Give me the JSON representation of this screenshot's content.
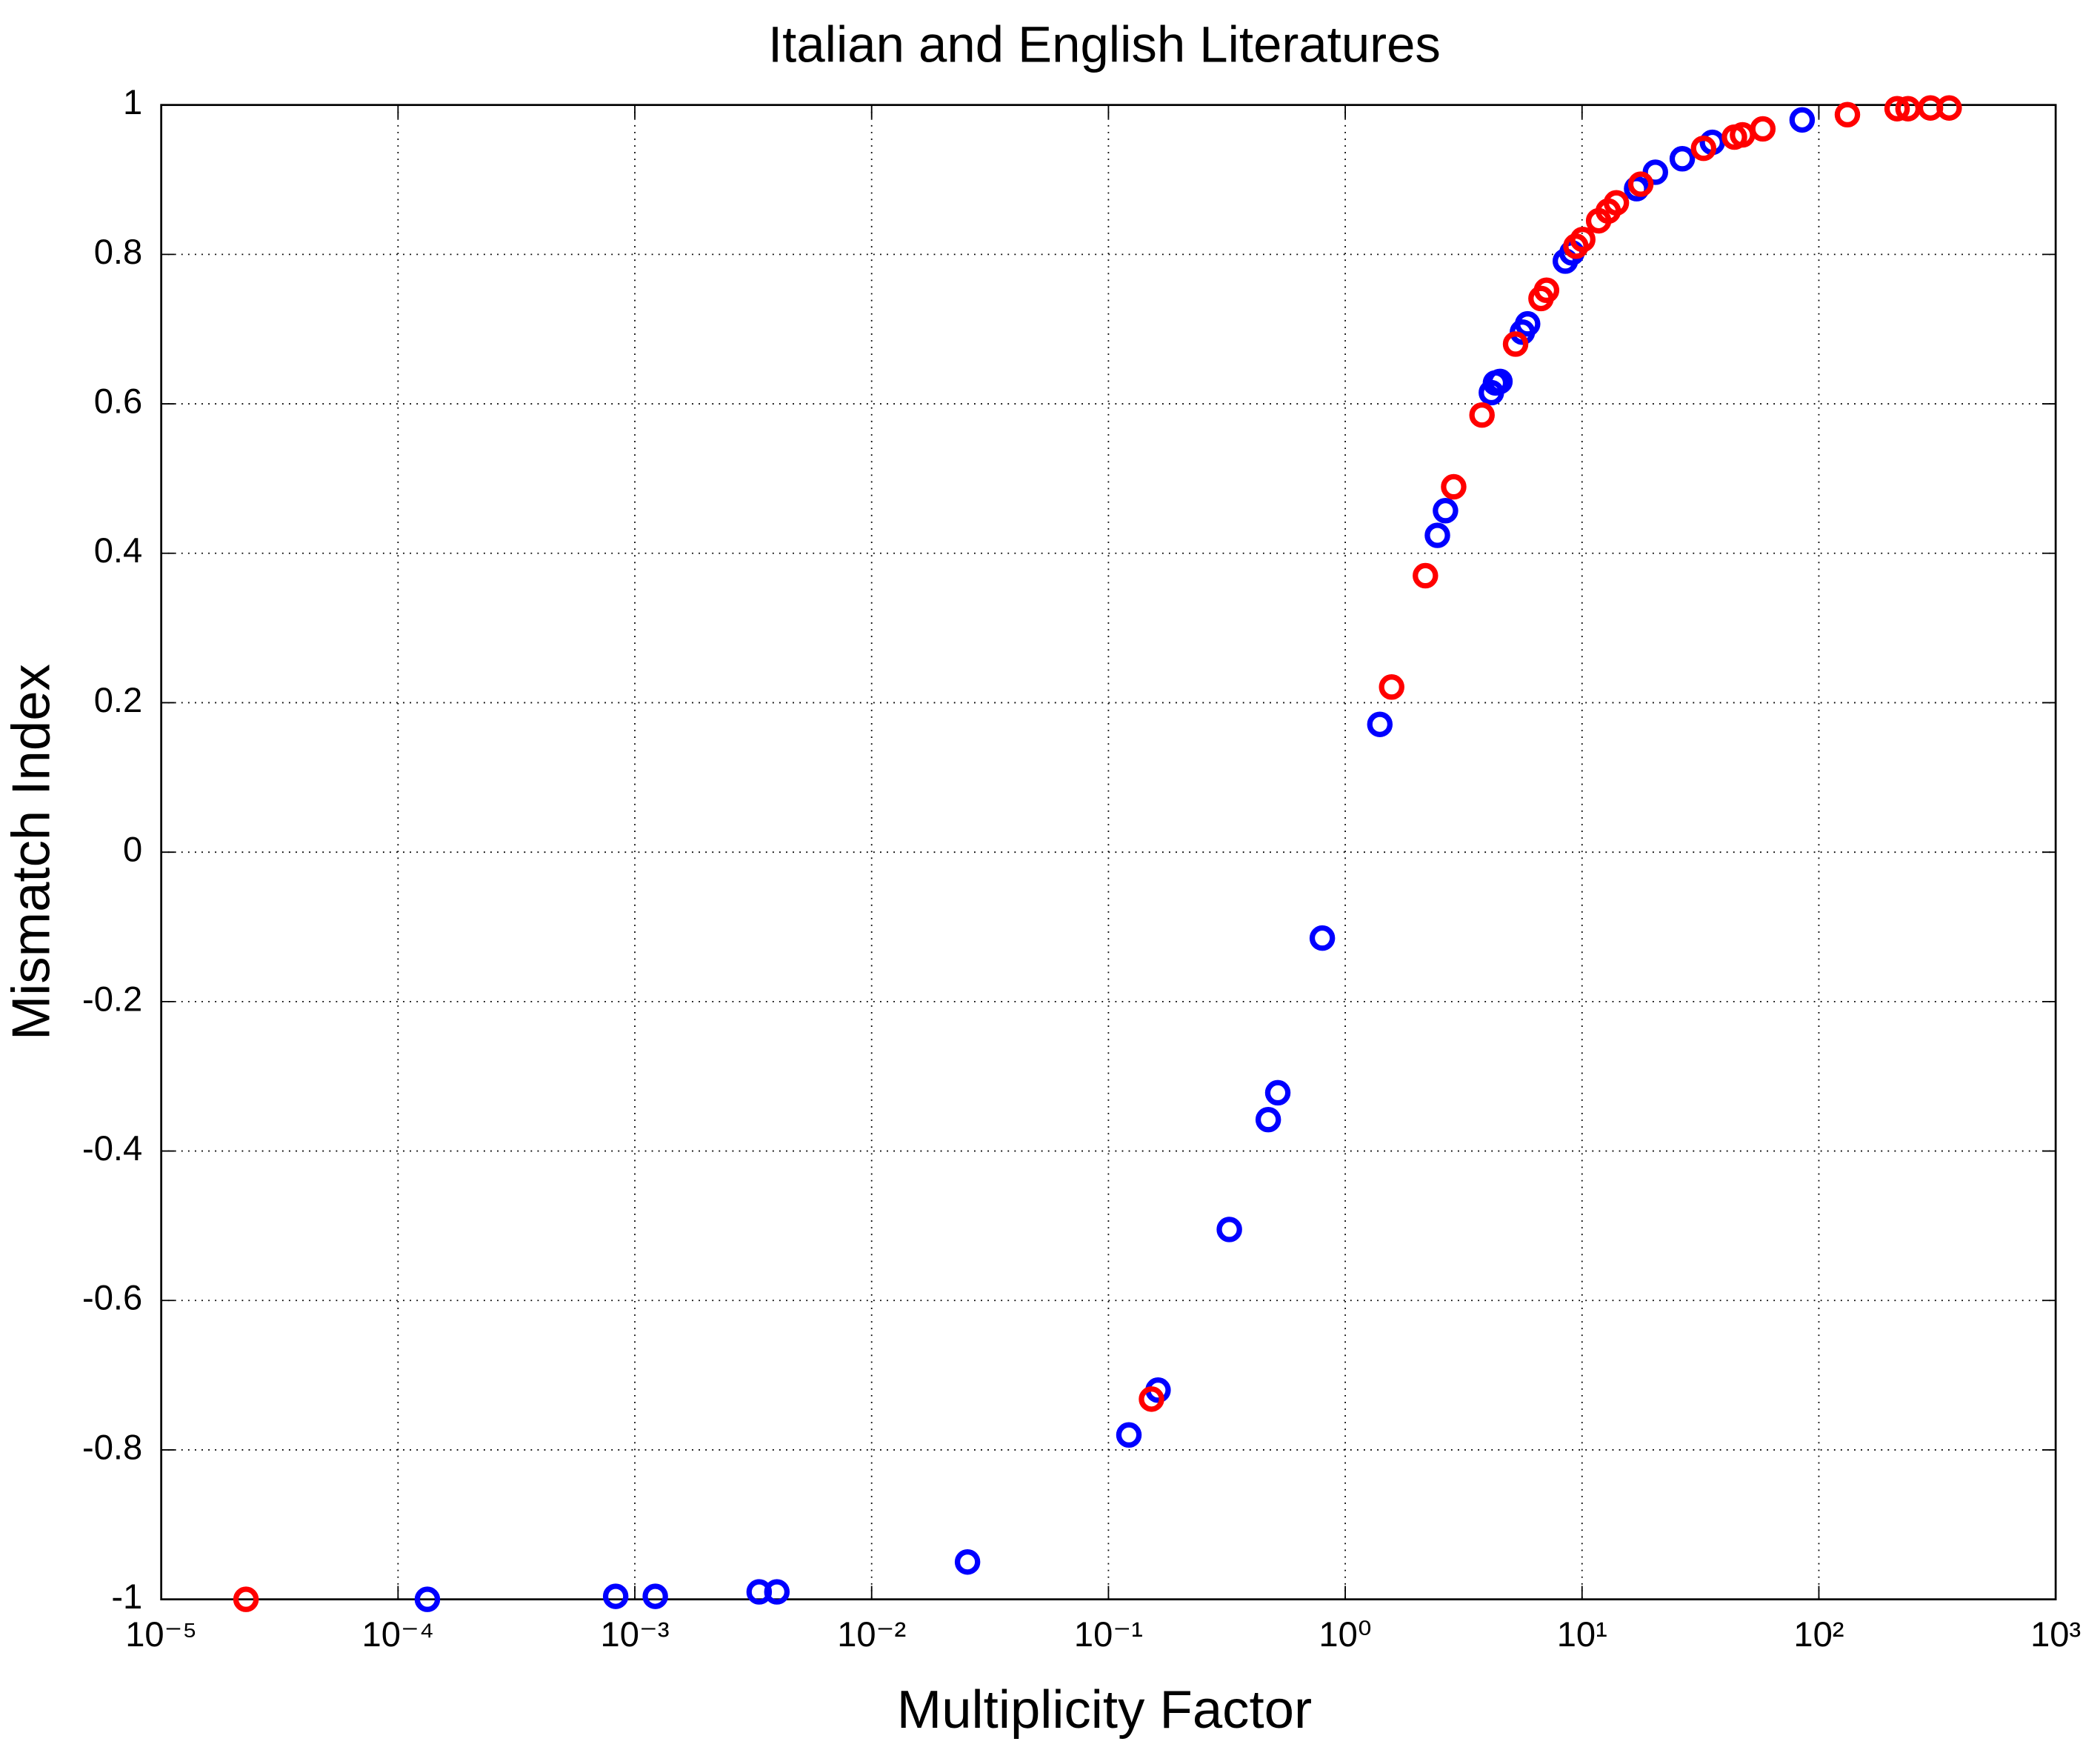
{
  "chart_data": {
    "type": "scatter",
    "title": "Italian and English Literatures",
    "x_label": "Multiplicity Factor",
    "y_label": "Mismatch Index",
    "x_scale": "log",
    "grid": true,
    "xlim": [
      1e-05,
      1000
    ],
    "ylim": [
      -1,
      1
    ],
    "xticks": [
      {
        "value": 1e-05,
        "label": "10⁻⁵"
      },
      {
        "value": 0.0001,
        "label": "10⁻⁴"
      },
      {
        "value": 0.001,
        "label": "10⁻³"
      },
      {
        "value": 0.01,
        "label": "10⁻²"
      },
      {
        "value": 0.1,
        "label": "10⁻¹"
      },
      {
        "value": 1,
        "label": "10⁰"
      },
      {
        "value": 10,
        "label": "10¹"
      },
      {
        "value": 100,
        "label": "10²"
      },
      {
        "value": 1000,
        "label": "10³"
      }
    ],
    "yticks": [
      -1,
      -0.8,
      -0.6,
      -0.4,
      -0.2,
      0,
      0.2,
      0.4,
      0.6,
      0.8,
      1
    ],
    "series": [
      {
        "color": "#0000ff",
        "x": [
          0.000133,
          0.00083,
          0.00122,
          0.00335,
          0.00398,
          0.0254,
          0.122,
          0.162,
          0.324,
          0.473,
          0.519,
          0.8,
          1.4,
          2.45,
          2.65,
          4.14,
          4.31,
          4.5,
          5.6,
          5.89,
          8.5,
          9.06,
          17,
          20.4,
          26.5,
          35.5,
          85
        ],
        "values": [
          -1,
          -0.996,
          -0.996,
          -0.99,
          -0.99,
          -0.95,
          -0.78,
          -0.72,
          -0.505,
          -0.358,
          -0.322,
          -0.115,
          0.171,
          0.424,
          0.457,
          0.615,
          0.628,
          0.63,
          0.696,
          0.707,
          0.791,
          0.802,
          0.888,
          0.91,
          0.928,
          0.95,
          0.98
        ]
      },
      {
        "color": "#ff0000",
        "x": [
          2.28e-05,
          0.152,
          1.57,
          2.18,
          2.87,
          3.78,
          5.24,
          6.71,
          7.08,
          9.42,
          10.07,
          11.75,
          12.9,
          13.96,
          17.7,
          32.6,
          44,
          47.6,
          58,
          132,
          214,
          238,
          296,
          355
        ],
        "values": [
          -1,
          -0.732,
          0.221,
          0.37,
          0.489,
          0.585,
          0.68,
          0.741,
          0.752,
          0.811,
          0.82,
          0.845,
          0.858,
          0.869,
          0.894,
          0.942,
          0.957,
          0.96,
          0.968,
          0.987,
          0.995,
          0.995,
          0.996,
          0.996
        ]
      }
    ]
  }
}
